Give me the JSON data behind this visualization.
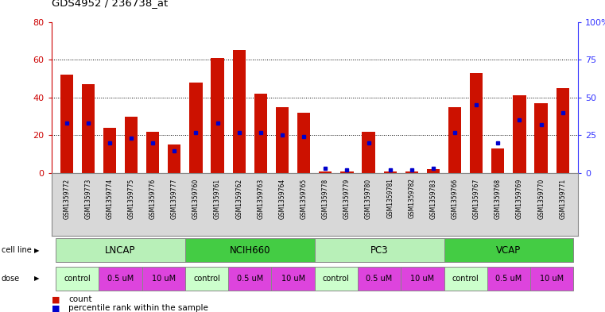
{
  "title": "GDS4952 / 236738_at",
  "samples": [
    "GSM1359772",
    "GSM1359773",
    "GSM1359774",
    "GSM1359775",
    "GSM1359776",
    "GSM1359777",
    "GSM1359760",
    "GSM1359761",
    "GSM1359762",
    "GSM1359763",
    "GSM1359764",
    "GSM1359765",
    "GSM1359778",
    "GSM1359779",
    "GSM1359780",
    "GSM1359781",
    "GSM1359782",
    "GSM1359783",
    "GSM1359766",
    "GSM1359767",
    "GSM1359768",
    "GSM1359769",
    "GSM1359770",
    "GSM1359771"
  ],
  "counts": [
    52,
    47,
    24,
    30,
    22,
    15,
    48,
    61,
    65,
    42,
    35,
    32,
    1,
    1,
    22,
    1,
    1,
    2,
    35,
    53,
    13,
    41,
    37,
    45
  ],
  "percentile_ranks": [
    33,
    33,
    20,
    23,
    20,
    15,
    27,
    33,
    27,
    27,
    25,
    24,
    3,
    2,
    20,
    2,
    2,
    3,
    27,
    45,
    20,
    35,
    32,
    40
  ],
  "cell_line_groups": [
    {
      "name": "LNCAP",
      "start": 0,
      "end": 5
    },
    {
      "name": "NCIH660",
      "start": 6,
      "end": 11
    },
    {
      "name": "PC3",
      "start": 12,
      "end": 17
    },
    {
      "name": "VCAP",
      "start": 18,
      "end": 23
    }
  ],
  "dose_labels": [
    "control",
    "0.5 uM",
    "10 uM"
  ],
  "ylim_left": [
    0,
    80
  ],
  "ylim_right": [
    0,
    100
  ],
  "yticks_left": [
    0,
    20,
    40,
    60,
    80
  ],
  "yticks_right": [
    0,
    25,
    50,
    75,
    100
  ],
  "bar_color": "#cc1100",
  "dot_color": "#0000cc",
  "cell_line_color_light": "#b8f0b8",
  "cell_line_color_dark": "#44cc44",
  "dose_control_color": "#ccffcc",
  "dose_uM_color": "#dd44dd",
  "sample_bg_color": "#d8d8d8",
  "left_axis_color": "#cc0000",
  "right_axis_color": "#3333ff",
  "fig_bg": "#ffffff",
  "plot_bg": "#ffffff"
}
